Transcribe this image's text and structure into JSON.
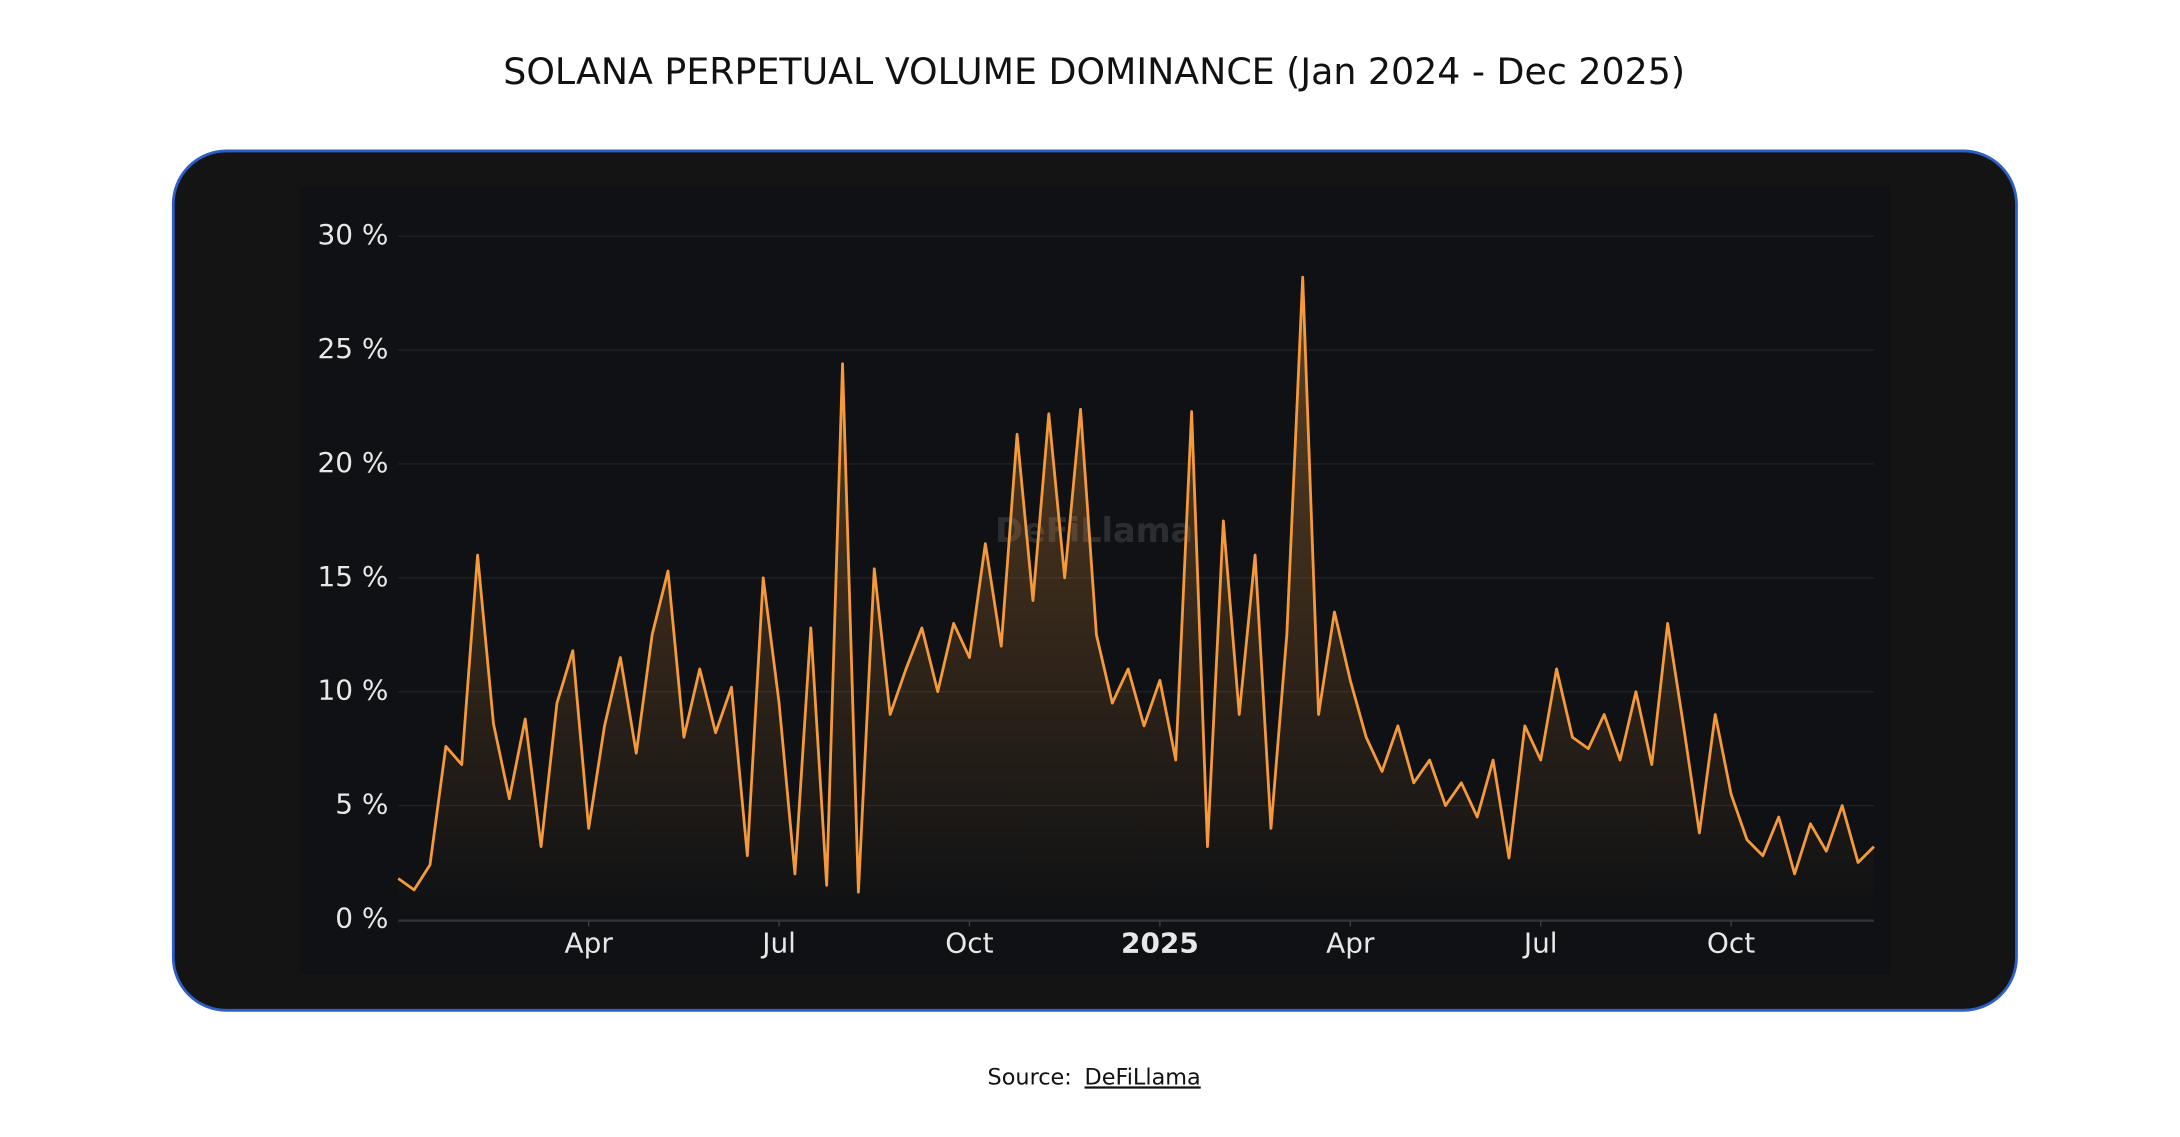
{
  "chart_data": {
    "type": "line",
    "title": "SOLANA PERPETUAL VOLUME DOMINANCE (Jan 2024 - Dec 2025)",
    "watermark": "DeFiLlama",
    "xlim": [
      0,
      23.25
    ],
    "xticks": [
      {
        "value": 3,
        "label": "Apr"
      },
      {
        "value": 6,
        "label": "Jul"
      },
      {
        "value": 9,
        "label": "Oct"
      },
      {
        "value": 12,
        "label": "2025"
      },
      {
        "value": 15,
        "label": "Apr"
      },
      {
        "value": 18,
        "label": "Jul"
      },
      {
        "value": 21,
        "label": "Oct"
      }
    ],
    "ylim": [
      0,
      30
    ],
    "yticks": [
      {
        "value": 0,
        "label": "0 %"
      },
      {
        "value": 5,
        "label": "5 %"
      },
      {
        "value": 10,
        "label": "10 %"
      },
      {
        "value": 15,
        "label": "15 %"
      },
      {
        "value": 20,
        "label": "20 %"
      },
      {
        "value": 25,
        "label": "25 %"
      },
      {
        "value": 30,
        "label": "30 %"
      }
    ],
    "grid": true,
    "series": [
      {
        "name": "Solana",
        "color": "#f59a3a",
        "x": [
          0,
          0.25,
          0.5,
          0.75,
          1,
          1.25,
          1.5,
          1.75,
          2,
          2.25,
          2.5,
          2.75,
          3,
          3.25,
          3.5,
          3.75,
          4,
          4.25,
          4.5,
          4.75,
          5,
          5.25,
          5.5,
          5.75,
          6,
          6.25,
          6.5,
          6.75,
          7,
          7.25,
          7.5,
          7.75,
          8,
          8.25,
          8.5,
          8.75,
          9,
          9.25,
          9.5,
          9.75,
          10,
          10.25,
          10.5,
          10.75,
          11,
          11.25,
          11.5,
          11.75,
          12,
          12.25,
          12.5,
          12.75,
          13,
          13.25,
          13.5,
          13.75,
          14,
          14.25,
          14.5,
          14.75,
          15,
          15.25,
          15.5,
          15.75,
          16,
          16.25,
          16.5,
          16.75,
          17,
          17.25,
          17.5,
          17.75,
          18,
          18.25,
          18.5,
          18.75,
          19,
          19.25,
          19.5,
          19.75,
          20,
          20.25,
          20.5,
          20.75,
          21,
          21.25,
          21.5,
          21.75,
          22,
          22.25,
          22.5,
          22.75,
          23,
          23.25
        ],
        "values": [
          1.8,
          1.3,
          2.4,
          7.6,
          6.8,
          16.0,
          8.6,
          5.3,
          8.8,
          3.2,
          9.5,
          11.8,
          4.0,
          8.5,
          11.5,
          7.3,
          12.5,
          15.3,
          8.0,
          11.0,
          8.2,
          10.2,
          2.8,
          15.0,
          9.5,
          2.0,
          12.8,
          1.5,
          24.4,
          1.2,
          15.4,
          9.0,
          11.0,
          12.8,
          10.0,
          13.0,
          11.5,
          16.5,
          12.0,
          21.3,
          14.0,
          22.2,
          15.0,
          22.4,
          12.5,
          9.5,
          11.0,
          8.5,
          10.5,
          7.0,
          22.3,
          3.2,
          17.5,
          9.0,
          16.0,
          4.0,
          12.5,
          28.2,
          9.0,
          13.5,
          10.5,
          8.0,
          6.5,
          8.5,
          6.0,
          7.0,
          5.0,
          6.0,
          4.5,
          7.0,
          2.7,
          8.5,
          7.0,
          11.0,
          8.0,
          7.5,
          9.0,
          7.0,
          10.0,
          6.8,
          13.0,
          8.5,
          3.8,
          9.0,
          5.5,
          3.5,
          2.8,
          4.5,
          2.0,
          4.2,
          3.0,
          5.0,
          2.5,
          3.2
        ]
      }
    ]
  },
  "source": {
    "label": "Source:",
    "link": "DeFiLlama"
  }
}
